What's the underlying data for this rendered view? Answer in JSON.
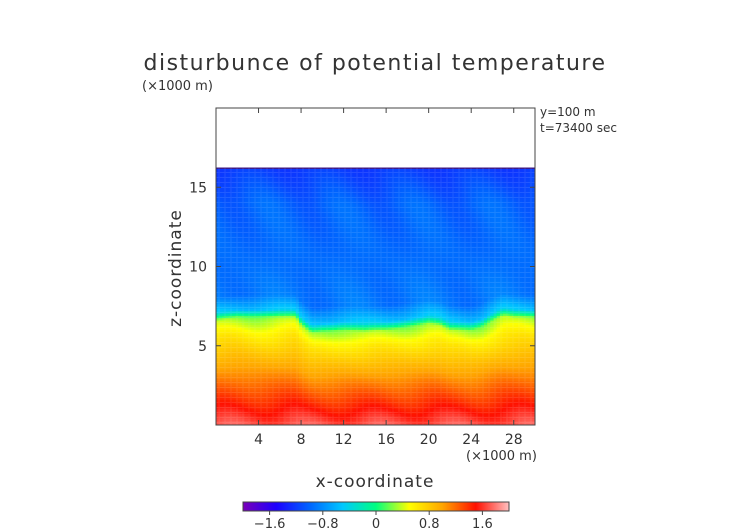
{
  "chart_data": {
    "type": "heatmap",
    "title": "disturbunce of potential temperature",
    "xlabel": "x-coordinate",
    "ylabel": "z-coordinate",
    "x_unit": "(×1000 m)",
    "y_unit": "(×1000 m)",
    "annotations": [
      "y=100 m",
      "t=73400 sec"
    ],
    "xlim": [
      0,
      30
    ],
    "ylim": [
      0,
      20
    ],
    "x_ticks": [
      4,
      8,
      12,
      16,
      20,
      24,
      28
    ],
    "y_ticks": [
      5,
      10,
      15
    ],
    "field_top": 16.2,
    "interface": {
      "x": [
        0,
        2,
        4,
        5,
        6,
        7.5,
        8,
        9,
        10,
        12,
        14,
        16,
        18,
        20,
        21,
        22,
        24,
        25,
        26,
        27,
        28,
        30
      ],
      "height": [
        6.6,
        6.8,
        6.8,
        6.8,
        6.8,
        6.8,
        6.3,
        5.8,
        5.9,
        6.0,
        5.9,
        6.0,
        6.2,
        6.4,
        6.3,
        6.0,
        6.0,
        6.2,
        6.6,
        6.9,
        6.8,
        6.8
      ]
    },
    "profile": {
      "z": [
        0,
        0.5,
        2,
        4,
        5.5,
        6.5,
        7,
        8,
        10,
        14,
        16.2
      ],
      "value": [
        1.7,
        1.6,
        1.3,
        0.9,
        0.6,
        0.3,
        -0.5,
        -0.9,
        -0.95,
        -1.0,
        -1.2
      ]
    },
    "colorbar": {
      "ticks": [
        "−1.6",
        "−0.8",
        "0",
        "0.8",
        "1.6"
      ],
      "tick_values": [
        -1.6,
        -0.8,
        0,
        0.8,
        1.6
      ],
      "range": [
        -2.0,
        2.0
      ],
      "colors": [
        "#7a00b8",
        "#1c00ff",
        "#0064ff",
        "#00c8ff",
        "#00ff80",
        "#ffff00",
        "#ffa500",
        "#ff1000",
        "#ffc0c0"
      ]
    }
  }
}
